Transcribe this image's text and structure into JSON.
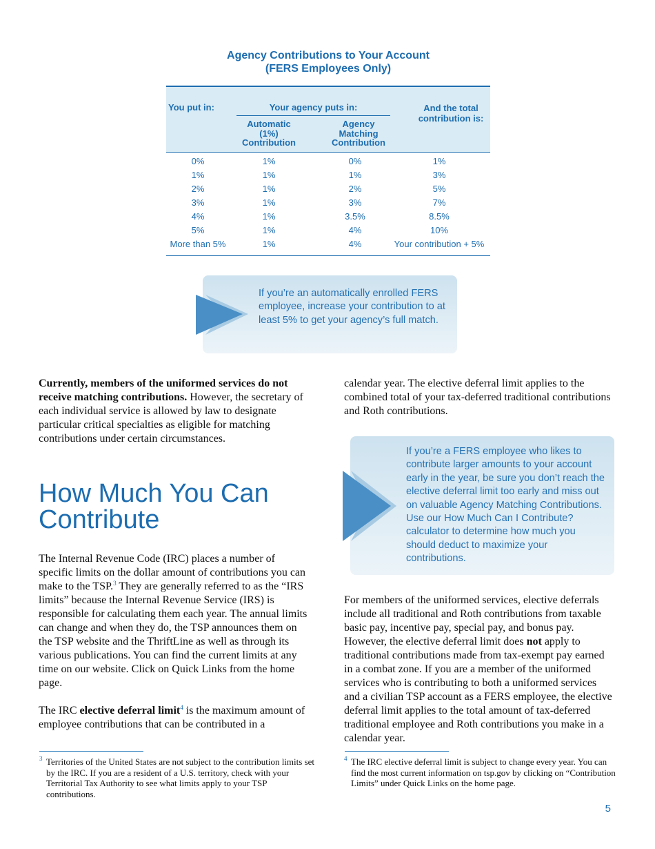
{
  "table": {
    "title": "Agency Contributions to Your Account",
    "subtitle": "(FERS Employees Only)",
    "headers": {
      "you_put_in": "You put in:",
      "agency_puts_in": "Your agency puts in:",
      "automatic": "Automatic (1%) Contribution",
      "matching": "Agency Matching Contribution",
      "total": "And the total contribution is:"
    },
    "rows": [
      [
        "0%",
        "1%",
        "0%",
        "1%"
      ],
      [
        "1%",
        "1%",
        "1%",
        "3%"
      ],
      [
        "2%",
        "1%",
        "2%",
        "5%"
      ],
      [
        "3%",
        "1%",
        "3%",
        "7%"
      ],
      [
        "4%",
        "1%",
        "3.5%",
        "8.5%"
      ],
      [
        "5%",
        "1%",
        "4%",
        "10%"
      ],
      [
        "More than 5%",
        "1%",
        "4%",
        "Your contribution + 5%"
      ]
    ]
  },
  "callout_1": "If you’re an automatically enrolled FERS employee, increase your contribution to at least 5% to get your agency’s full match.",
  "left_column": {
    "paragraph_1": [
      {
        "text": "Currently, members of the uniformed services do not receive matching contributions.",
        "style": "bold"
      },
      {
        "text": " However, the secretary of each individual service is allowed by law to designate particular critical specialties as eligible for matching contributions under certain circumstances."
      }
    ],
    "heading": "How Much You Can Contribute",
    "paragraph_2": [
      {
        "text": "The Internal Revenue Code (IRC) places a number of specific limits on the dollar amount of contributions you can make to the TSP."
      },
      {
        "text": "3",
        "style": "sup"
      },
      {
        "text": " They are generally referred to as the “IRS limits” because the Internal Revenue Service (IRS) is responsible for calculating them each year. The annual limits can change and when they do, the TSP announces them on the TSP website and the ThriftLine as well as through its various publications. You can find the current limits at any time on our website. Click on Quick Links from the home page."
      }
    ],
    "paragraph_3": [
      {
        "text": "The IRC "
      },
      {
        "text": "elective deferral limit",
        "style": "bold"
      },
      {
        "text": "4",
        "style": "sup"
      },
      {
        "text": " is the maximum amount of employee contributions that can be contributed in a"
      }
    ],
    "footnote": {
      "number": "3",
      "text": "Territories of the United States are not subject to the contribution limits set by the IRC. If you are a resident of a U.S. territory, check with your Territorial Tax Authority to see what limits apply to your TSP contributions."
    }
  },
  "right_column": {
    "paragraph_1": [
      {
        "text": "calendar year. The elective deferral limit applies to the combined total of your tax-deferred traditional contributions and Roth contributions."
      }
    ],
    "callout_2": "If you’re a FERS employee who likes to contribute larger amounts to your account early in the year, be sure you don’t reach the elective deferral limit too early and miss out on valuable Agency Matching Contributions. Use our How Much Can I Contribute? calculator to determine how much you should deduct to maximize your contributions.",
    "paragraph_2": [
      {
        "text": "For members of the uniformed services, elective deferrals include all traditional and Roth contributions from taxable basic pay, incentive pay, special pay, and bonus pay. However, the elective deferral limit does "
      },
      {
        "text": "not",
        "style": "bold"
      },
      {
        "text": " apply to traditional contributions made from tax-exempt pay earned in a combat zone. If you are a member of the uniformed services who is contributing to both a uniformed services and a civilian TSP account as a FERS employee, the elective deferral limit applies to the total amount of tax-deferred traditional employee and Roth contributions you make in a calendar year."
      }
    ],
    "footnote": {
      "number": "4",
      "text": "The IRC elective deferral limit is subject to change every year. You can find the most current information on tsp.gov by clicking on “Contribution Limits” under Quick Links on the home page."
    }
  },
  "page_number": "5"
}
